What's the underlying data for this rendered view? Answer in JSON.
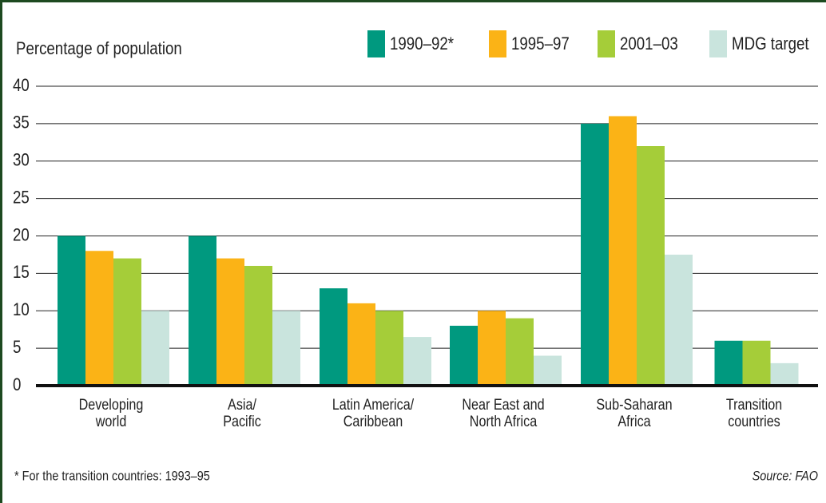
{
  "chart_data": {
    "type": "bar",
    "y_label": "Percentage of population",
    "categories": [
      "Developing\nworld",
      "Asia/\nPacific",
      "Latin America/\nCaribbean",
      "Near East and\nNorth Africa",
      "Sub-Saharan\nAfrica",
      "Transition\ncountries"
    ],
    "series": [
      {
        "name": "1990–92*",
        "color": "#00997f",
        "values": [
          20,
          20,
          13,
          8,
          35,
          6
        ]
      },
      {
        "name": "1995–97",
        "color": "#fbb316",
        "values": [
          18,
          17,
          11,
          10,
          36,
          null
        ]
      },
      {
        "name": "2001–03",
        "color": "#a5cd39",
        "values": [
          17,
          16,
          10,
          9,
          32,
          6
        ]
      },
      {
        "name": "MDG target",
        "color": "#c9e4dd",
        "values": [
          10,
          10,
          6.5,
          4,
          17.5,
          3
        ]
      }
    ],
    "ylim": [
      0,
      40
    ],
    "yticks": [
      0,
      5,
      10,
      15,
      20,
      25,
      30,
      35,
      40
    ],
    "grid": true,
    "footnote": "* For the transition countries: 1993–95",
    "source": "Source: FAO"
  }
}
